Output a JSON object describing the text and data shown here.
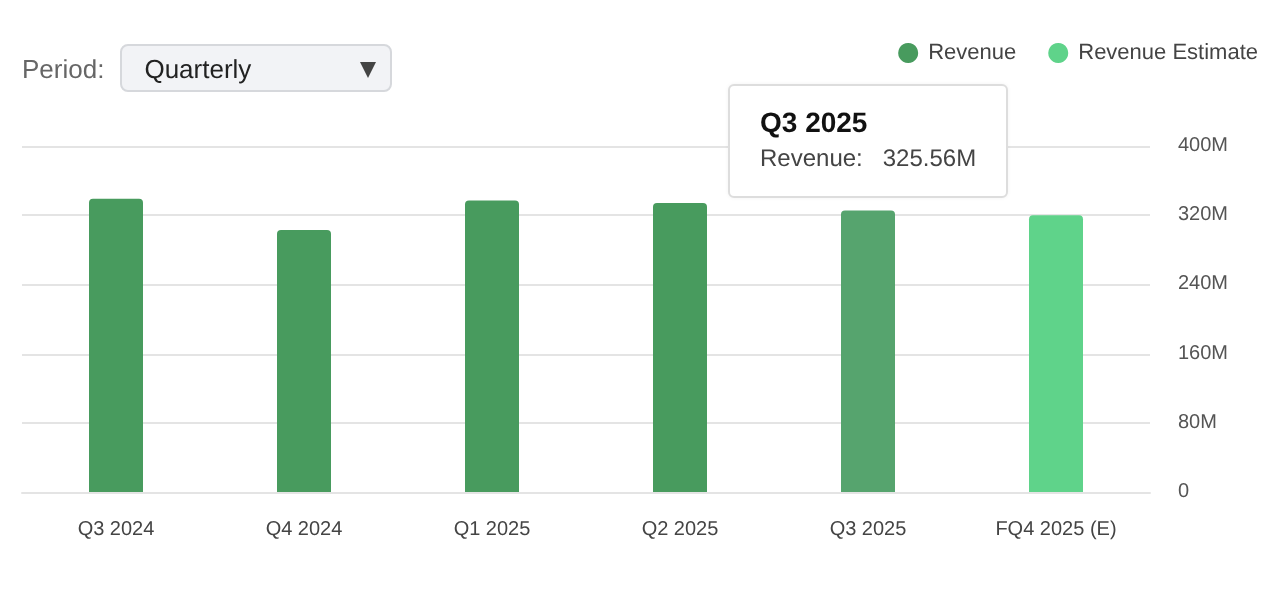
{
  "chart_data": {
    "type": "bar",
    "categories": [
      "Q3 2024",
      "Q4 2024",
      "Q1 2025",
      "Q2 2025",
      "Q3 2025",
      "FQ4 2025 (E)"
    ],
    "series": [
      {
        "name": "Revenue",
        "color": "#489b5e",
        "colors": [
          "#489b5e",
          "#489b5e",
          "#489b5e",
          "#489b5e",
          "#56a46e",
          null
        ],
        "values": [
          339,
          303,
          337,
          334,
          325.56,
          null
        ]
      },
      {
        "name": "Revenue Estimate",
        "color": "#5fd38a",
        "values": [
          null,
          null,
          null,
          null,
          null,
          320
        ]
      }
    ],
    "ylim": [
      0,
      400
    ],
    "yticks": [
      {
        "value": 0,
        "label": "0"
      },
      {
        "value": 80,
        "label": "80M"
      },
      {
        "value": 160,
        "label": "160M"
      },
      {
        "value": 240,
        "label": "240M"
      },
      {
        "value": 320,
        "label": "320M"
      },
      {
        "value": 400,
        "label": "400M"
      }
    ],
    "grid": "y",
    "legend": "top right",
    "marker": "circle",
    "annotations": [
      "Period:",
      "Quarterly",
      {
        "text": "Q3 2025",
        "x": "Q3 2025",
        "y": 325.56
      },
      {
        "text": "Revenue:   325.56M",
        "x": "Q3 2025",
        "y": 325.56
      }
    ]
  }
}
